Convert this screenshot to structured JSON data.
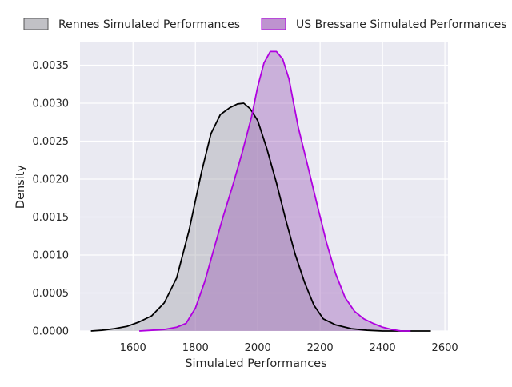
{
  "chart_data": {
    "type": "area",
    "subtype": "kde-density",
    "xlabel": "Simulated Performances",
    "ylabel": "Density",
    "xlim": [
      1430,
      2610
    ],
    "ylim": [
      0,
      0.0038
    ],
    "xticks": [
      1600,
      1800,
      2000,
      2200,
      2400,
      2600
    ],
    "yticks": [
      0.0,
      0.0005,
      0.001,
      0.0015,
      0.002,
      0.0025,
      0.003,
      0.0035
    ],
    "ytick_labels": [
      "0.0000",
      "0.0005",
      "0.0010",
      "0.0015",
      "0.0020",
      "0.0025",
      "0.0030",
      "0.0035"
    ],
    "xtick_labels": [
      "1600",
      "1800",
      "2000",
      "2200",
      "2400",
      "2600"
    ],
    "grid": true,
    "background": "#eaeaf2",
    "legend_position": "top",
    "series": [
      {
        "name": "Rennes Simulated Performances",
        "line_color": "#000000",
        "fill_color": "#a0a0a8",
        "fill_opacity": 0.4,
        "x": [
          1465,
          1500,
          1540,
          1580,
          1620,
          1660,
          1700,
          1740,
          1780,
          1820,
          1850,
          1880,
          1910,
          1935,
          1955,
          1975,
          2000,
          2030,
          2060,
          2090,
          2120,
          2150,
          2180,
          2210,
          2250,
          2300,
          2350,
          2400,
          2450,
          2500,
          2555
        ],
        "y": [
          0.0,
          1e-05,
          3e-05,
          6e-05,
          0.00012,
          0.0002,
          0.00037,
          0.0007,
          0.00133,
          0.0021,
          0.0026,
          0.00285,
          0.00294,
          0.00299,
          0.003,
          0.00293,
          0.00277,
          0.00239,
          0.00195,
          0.00146,
          0.00101,
          0.00064,
          0.00034,
          0.00016,
          8e-05,
          3e-05,
          1e-05,
          0.0,
          0.0,
          0.0,
          0.0
        ]
      },
      {
        "name": "US Bressane Simulated Performances",
        "line_color": "#b000e0",
        "fill_color": "#9b59b6",
        "fill_opacity": 0.4,
        "x": [
          1620,
          1660,
          1700,
          1740,
          1770,
          1800,
          1830,
          1860,
          1890,
          1920,
          1950,
          1980,
          2000,
          2020,
          2040,
          2060,
          2080,
          2100,
          2130,
          2160,
          2190,
          2220,
          2250,
          2280,
          2310,
          2340,
          2370,
          2400,
          2430,
          2460,
          2490
        ],
        "y": [
          0.0,
          1e-05,
          2e-05,
          5e-05,
          0.0001,
          0.0003,
          0.00065,
          0.00109,
          0.00152,
          0.00192,
          0.00235,
          0.00282,
          0.00322,
          0.00353,
          0.00368,
          0.00368,
          0.00358,
          0.00332,
          0.00268,
          0.00218,
          0.00167,
          0.00117,
          0.00075,
          0.00044,
          0.00026,
          0.00016,
          0.0001,
          5e-05,
          2e-05,
          0.0,
          0.0
        ]
      }
    ]
  }
}
